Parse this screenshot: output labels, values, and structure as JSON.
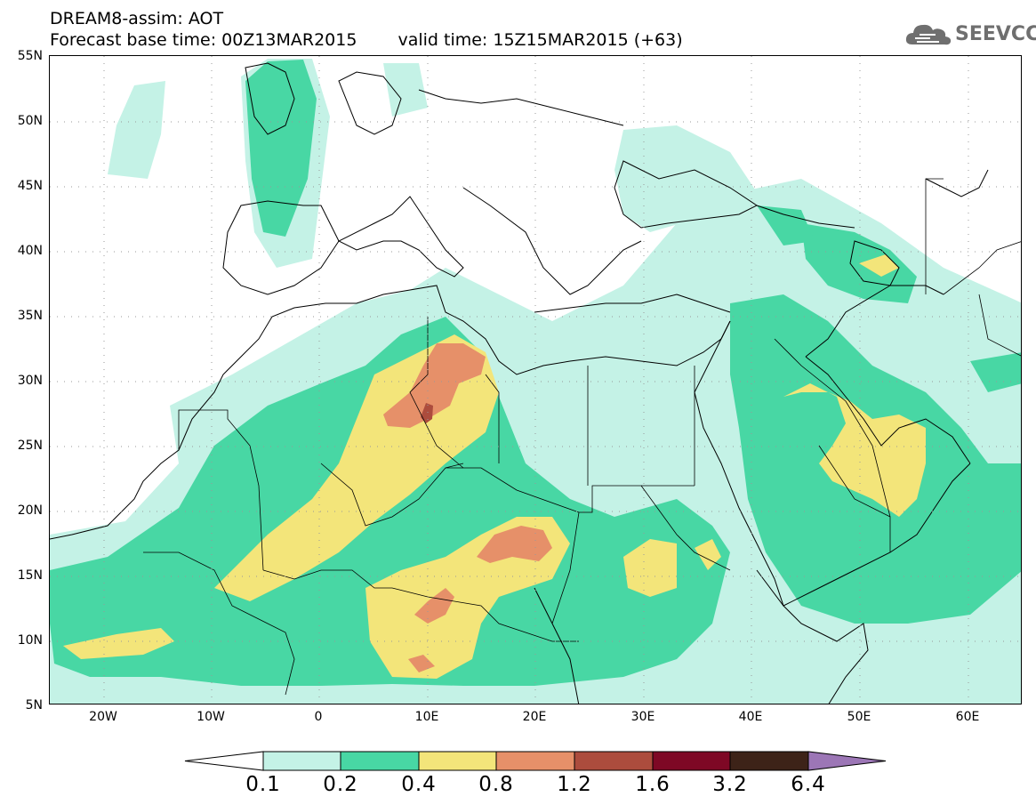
{
  "header": {
    "title_line1": "DREAM8-assim: AOT",
    "base_time": "Forecast base time: 00Z13MAR2015",
    "valid_time": "valid time: 15Z15MAR2015 (+63)"
  },
  "logo": {
    "text": "SEEVCCC",
    "icon": "cloud-icon"
  },
  "map": {
    "extent": {
      "lon_min": -25,
      "lon_max": 65,
      "lat_min": 5,
      "lat_max": 55
    },
    "lat_labels": [
      "55N",
      "50N",
      "45N",
      "40N",
      "35N",
      "30N",
      "25N",
      "20N",
      "15N",
      "10N",
      "5N"
    ],
    "lon_labels": [
      "20W",
      "10W",
      "0",
      "10E",
      "20E",
      "30E",
      "40E",
      "50E",
      "60E"
    ],
    "grid": "dotted"
  },
  "colorbar": {
    "labels": [
      "0.1",
      "0.2",
      "0.4",
      "0.8",
      "1.2",
      "1.6",
      "3.2",
      "6.4"
    ],
    "colors": [
      "#ffffff",
      "#c4f2e6",
      "#48d7a4",
      "#f3e57a",
      "#e69069",
      "#ac4c3d",
      "#7e0825",
      "#3d2318",
      "#9c76b6"
    ]
  }
}
